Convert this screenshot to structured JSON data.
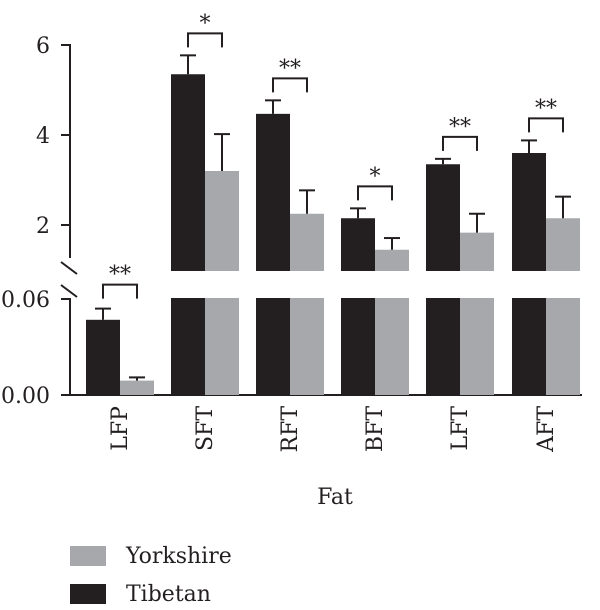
{
  "chart_data": {
    "type": "bar",
    "xlabel": "Fat",
    "ylabel": "",
    "categories": [
      "LFP",
      "SFT",
      "RFT",
      "BFT",
      "LFT",
      "AFT"
    ],
    "series": [
      {
        "name": "Tibetan",
        "color": "#231f20",
        "values": [
          0.047,
          5.35,
          4.47,
          2.15,
          3.35,
          3.6
        ],
        "errors": [
          0.007,
          0.42,
          0.3,
          0.22,
          0.12,
          0.28
        ]
      },
      {
        "name": "Yorkshire",
        "color": "#a6a8ab",
        "values": [
          0.009,
          3.2,
          2.25,
          1.45,
          1.83,
          2.15
        ],
        "errors": [
          0.002,
          0.82,
          0.52,
          0.26,
          0.42,
          0.48
        ]
      }
    ],
    "significance": [
      "**",
      "*",
      "**",
      "*",
      "**",
      "**"
    ],
    "axis": {
      "broken": true,
      "lower_segment": {
        "ylim": [
          0,
          0.06
        ],
        "ticks": [
          "0.00",
          "0.06"
        ]
      },
      "upper_segment": {
        "ylim": [
          1.0,
          6.2
        ],
        "ticks": [
          "2",
          "4",
          "6"
        ]
      }
    },
    "legend": {
      "position": "bottom-left",
      "order": [
        "Yorkshire",
        "Tibetan"
      ]
    }
  }
}
